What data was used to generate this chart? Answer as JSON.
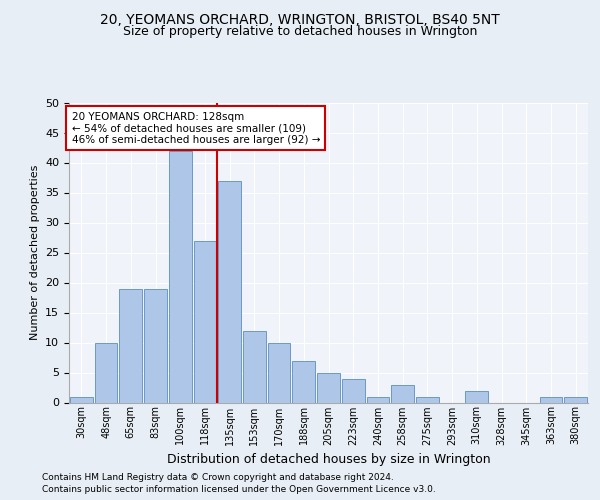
{
  "title1": "20, YEOMANS ORCHARD, WRINGTON, BRISTOL, BS40 5NT",
  "title2": "Size of property relative to detached houses in Wrington",
  "xlabel": "Distribution of detached houses by size in Wrington",
  "ylabel": "Number of detached properties",
  "bin_labels": [
    "30sqm",
    "48sqm",
    "65sqm",
    "83sqm",
    "100sqm",
    "118sqm",
    "135sqm",
    "153sqm",
    "170sqm",
    "188sqm",
    "205sqm",
    "223sqm",
    "240sqm",
    "258sqm",
    "275sqm",
    "293sqm",
    "310sqm",
    "328sqm",
    "345sqm",
    "363sqm",
    "380sqm"
  ],
  "bar_values": [
    1,
    10,
    19,
    19,
    42,
    27,
    37,
    12,
    10,
    7,
    5,
    4,
    1,
    3,
    1,
    0,
    2,
    0,
    0,
    1,
    1
  ],
  "bar_color": "#aec6e8",
  "bar_edge_color": "#5a8fc0",
  "vline_x": 5.5,
  "vline_color": "#cc0000",
  "annot_line1": "20 YEOMANS ORCHARD: 128sqm",
  "annot_line2": "← 54% of detached houses are smaller (109)",
  "annot_line3": "46% of semi-detached houses are larger (92) →",
  "annotation_box_color": "#cc0000",
  "annotation_box_facecolor": "white",
  "ylim": [
    0,
    50
  ],
  "yticks": [
    0,
    5,
    10,
    15,
    20,
    25,
    30,
    35,
    40,
    45,
    50
  ],
  "footer1": "Contains HM Land Registry data © Crown copyright and database right 2024.",
  "footer2": "Contains public sector information licensed under the Open Government Licence v3.0.",
  "bg_color": "#e8eef5",
  "plot_bg_color": "#f0f4fa",
  "grid_color": "#ffffff",
  "title1_fontsize": 10,
  "title2_fontsize": 9,
  "ylabel_fontsize": 8,
  "xlabel_fontsize": 9,
  "ytick_fontsize": 8,
  "xtick_fontsize": 7,
  "footer_fontsize": 6.5
}
